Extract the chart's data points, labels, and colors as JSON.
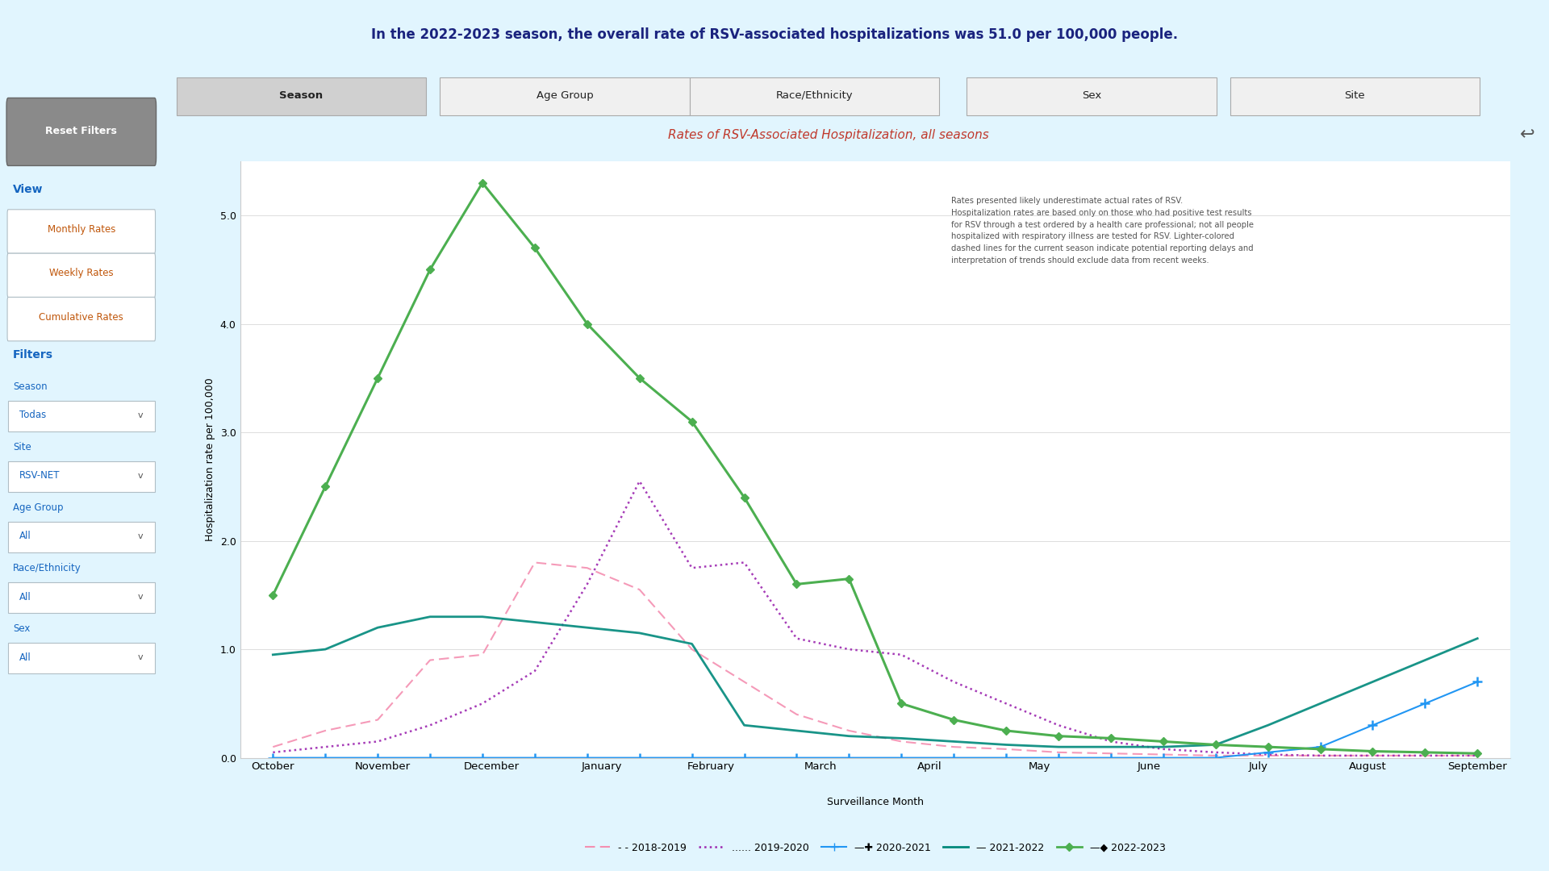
{
  "title_bar": "In the 2022-2023 season, the overall rate of RSV-associated hospitalizations was 51.0 per 100,000 people.",
  "chart_title": "Rates of RSV-Associated Hospitalization, all seasons",
  "ylabel": "Hospitalization rate per 100,000",
  "xlabel": "Surveillance Month",
  "x_labels": [
    "October",
    "November",
    "December",
    "January",
    "February",
    "March",
    "April",
    "May",
    "June",
    "July",
    "August",
    "September"
  ],
  "ylim": [
    0,
    5.5
  ],
  "yticks": [
    0.0,
    1.0,
    2.0,
    3.0,
    4.0,
    5.0
  ],
  "note_text": "Rates presented likely underestimate actual rates of RSV.\nHospitalization rates are based only on those who had positive test results\nfor RSV through a test ordered by a health care professional; not all people\nhospitalized with respiratory illness are tested for RSV. Lighter-colored\ndashed lines for the current season indicate potential reporting delays and\ninterpretation of trends should exclude data from recent weeks.",
  "tab_labels": [
    "Season",
    "Age Group",
    "Race/Ethnicity",
    "Sex",
    "Site"
  ],
  "legend": [
    "2018-2019",
    "2019-2020",
    "2020-2021",
    "2021-2022",
    "2022-2023"
  ],
  "series_2018_2019": [
    0.1,
    0.25,
    0.35,
    0.9,
    0.95,
    1.8,
    1.75,
    1.55,
    1.0,
    0.7,
    0.4,
    0.25,
    0.15,
    0.1,
    0.08,
    0.05,
    0.04,
    0.03,
    0.02,
    0.02,
    0.02,
    0.02,
    0.02,
    0.02
  ],
  "series_2019_2020": [
    0.05,
    0.1,
    0.15,
    0.3,
    0.5,
    0.8,
    1.6,
    2.55,
    1.75,
    1.8,
    1.1,
    1.0,
    0.95,
    0.7,
    0.5,
    0.3,
    0.15,
    0.08,
    0.05,
    0.03,
    0.02,
    0.02,
    0.02,
    0.02
  ],
  "series_2020_2021": [
    0.0,
    0.0,
    0.0,
    0.0,
    0.0,
    0.0,
    0.0,
    0.0,
    0.0,
    0.0,
    0.0,
    0.0,
    0.0,
    0.0,
    0.0,
    0.0,
    0.0,
    0.0,
    0.0,
    0.05,
    0.1,
    0.3,
    0.5,
    0.7
  ],
  "series_2021_2022": [
    0.95,
    1.0,
    1.2,
    1.3,
    1.3,
    1.25,
    1.2,
    1.15,
    1.05,
    0.3,
    0.25,
    0.2,
    0.18,
    0.15,
    0.12,
    0.1,
    0.1,
    0.1,
    0.12,
    0.3,
    0.5,
    0.7,
    0.9,
    1.1
  ],
  "series_2022_2023": [
    1.5,
    2.5,
    3.5,
    4.5,
    5.3,
    4.7,
    4.0,
    3.5,
    3.1,
    2.4,
    1.6,
    1.65,
    0.5,
    0.35,
    0.25,
    0.2,
    0.18,
    0.15,
    0.12,
    0.1,
    0.08,
    0.06,
    0.05,
    0.04
  ],
  "bg_sidebar": "#b3e5fc",
  "bg_title_bar": "#b3e5fc",
  "bg_chart": "#ffffff",
  "color_2018_2019": "#f48fb1",
  "color_2019_2020": "#9c27b0",
  "color_2020_2021": "#2196f3",
  "color_2021_2022": "#00897b",
  "color_2022_2023": "#4caf50",
  "title_bar_bg": "#b3e5fc",
  "blue_line_color": "#1a6fad",
  "sidebar_bg": "#b3e5fc"
}
